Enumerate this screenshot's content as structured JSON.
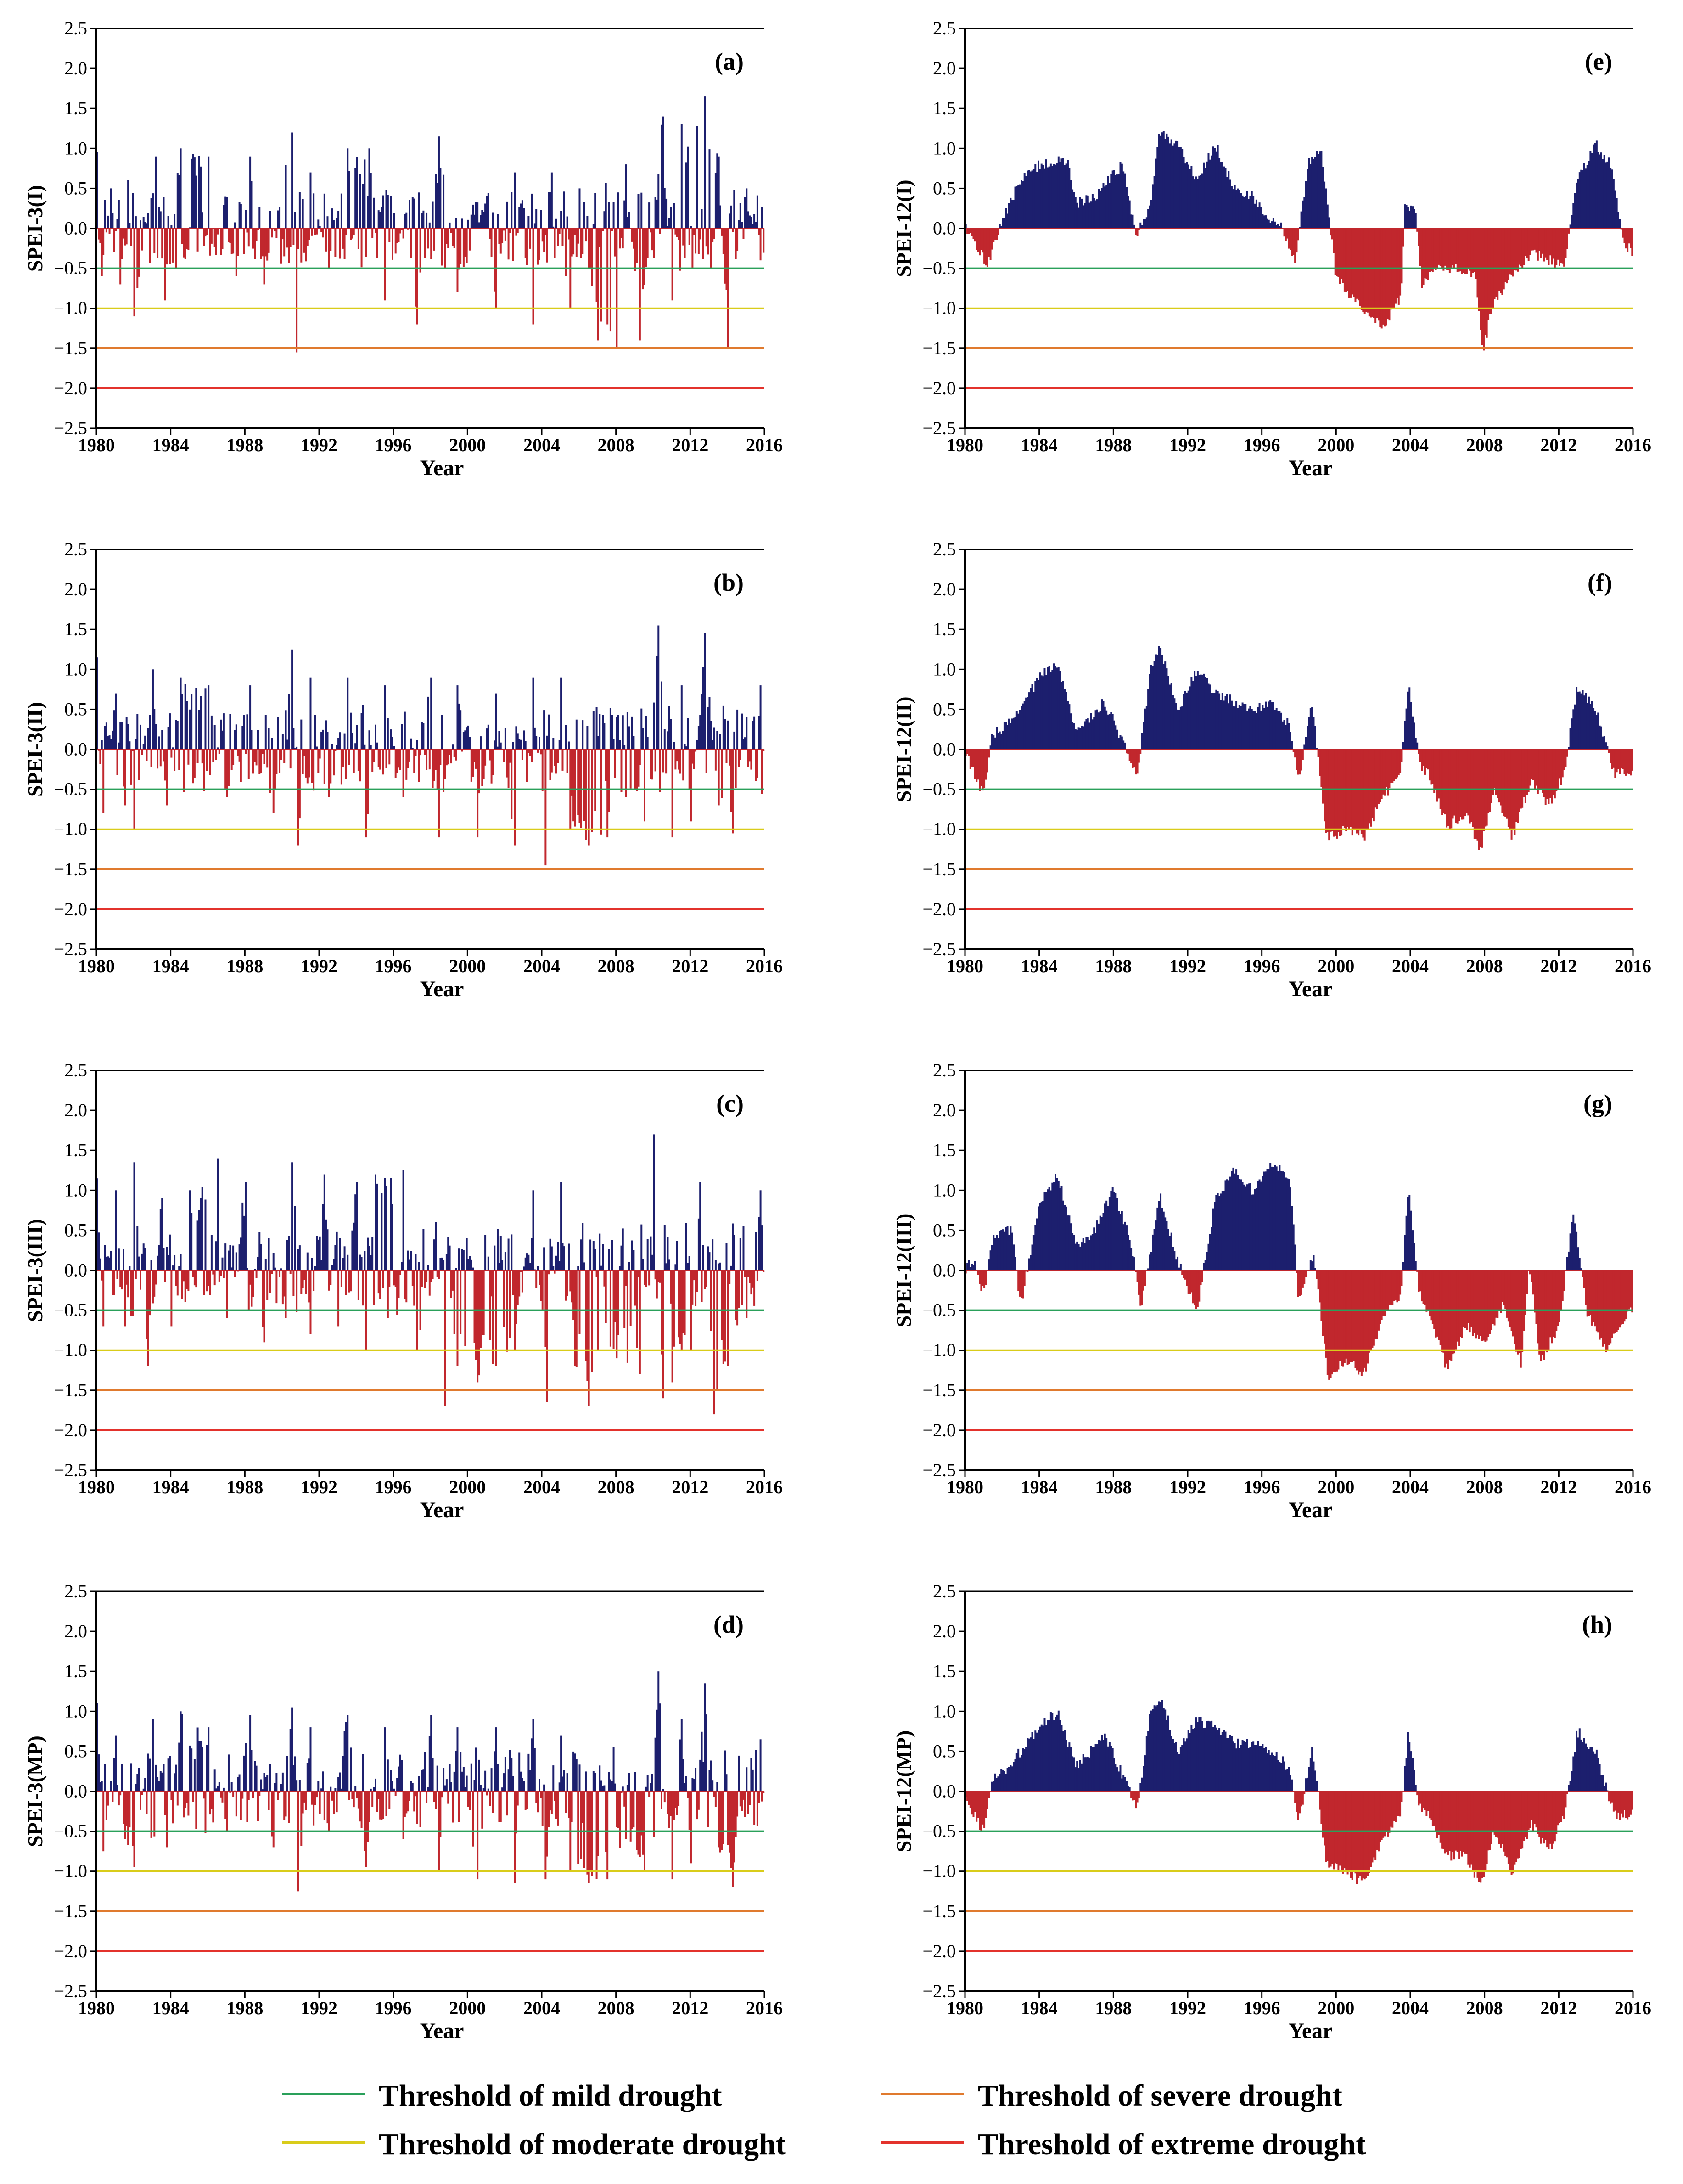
{
  "colors": {
    "wet": "#1c1f6e",
    "dry": "#c1272d",
    "mild": "#2aa05a",
    "moderate": "#d9cc1a",
    "severe": "#e07a2e",
    "extreme": "#e3322c",
    "axis": "#000000"
  },
  "shared": {
    "xlabel": "Year",
    "xlim": [
      1980,
      2016
    ],
    "ylim": [
      -2.5,
      2.5
    ],
    "xticks": [
      1980,
      1984,
      1988,
      1992,
      1996,
      2000,
      2004,
      2008,
      2012,
      2016
    ],
    "xtick_labels": [
      "1980",
      "1984",
      "1988",
      "1992",
      "1996",
      "2000",
      "2004",
      "2008",
      "2012",
      "2016"
    ],
    "yticks": [
      2.5,
      2.0,
      1.5,
      1.0,
      0.5,
      0.0,
      -0.5,
      -1.0,
      -1.5,
      -2.0,
      -2.5
    ],
    "ytick_labels": [
      "2.5",
      "2.0",
      "1.5",
      "1.0",
      "0.5",
      "0.0",
      "−0.5",
      "−1.0",
      "−1.5",
      "−2.0",
      "−2.5"
    ],
    "thresholds": [
      {
        "name": "mild",
        "value": -0.5
      },
      {
        "name": "moderate",
        "value": -1.0
      },
      {
        "name": "severe",
        "value": -1.5
      },
      {
        "name": "extreme",
        "value": -2.0
      }
    ]
  },
  "legend": {
    "placement": "bottom",
    "items": [
      {
        "key": "mild",
        "label": "Threshold of mild drought"
      },
      {
        "key": "severe",
        "label": "Threshold of severe drought"
      },
      {
        "key": "moderate",
        "label": "Threshold of moderate drought"
      },
      {
        "key": "extreme",
        "label": "Threshold of extreme drought"
      }
    ]
  },
  "chart_data": [
    {
      "type": "area",
      "panel_label": "(a)",
      "ylabel": "SPEI-3(I)",
      "xlabel": "Year",
      "xlim": [
        1980,
        2016
      ],
      "ylim": [
        -2.5,
        2.5
      ],
      "scale": "SPEI-3",
      "series": [
        {
          "name": "SPEI-3(I)",
          "x": [
            1980.0,
            1980.3,
            1980.8,
            1981.3,
            1981.7,
            1982.0,
            1983.2,
            1983.7,
            1984.5,
            1986.0,
            1987.5,
            1988.3,
            1989.0,
            1990.5,
            1990.8,
            1991.5,
            1992.5,
            1993.5,
            1994.7,
            1995.5,
            1996.7,
            1997.3,
            1998.5,
            1999.5,
            2001.0,
            2001.5,
            2002.5,
            2003.5,
            2004.5,
            2005.5,
            2006.0,
            2007.0,
            2007.5,
            2008.0,
            2008.5,
            2009.3,
            2010.5,
            2011.0,
            2011.5,
            2012.8,
            2013.5,
            2014.0,
            2015.0,
            2015.8
          ],
          "values": [
            0.95,
            -0.6,
            0.5,
            -0.7,
            0.6,
            -1.1,
            0.9,
            -0.9,
            1.0,
            0.9,
            -0.6,
            0.9,
            -0.7,
            1.2,
            -1.55,
            0.7,
            -0.5,
            1.0,
            1.0,
            -0.9,
            0.2,
            -1.2,
            1.15,
            -0.8,
            0.4,
            -1.0,
            0.7,
            -1.2,
            0.7,
            -1.0,
            0.5,
            -1.4,
            -1.2,
            -1.5,
            0.8,
            -1.4,
            1.4,
            -0.9,
            1.3,
            1.65,
            0.9,
            -1.5,
            0.5,
            -0.4
          ]
        }
      ]
    },
    {
      "type": "area",
      "panel_label": "(b)",
      "ylabel": "SPEI-3(II)",
      "xlabel": "Year",
      "xlim": [
        1980,
        2016
      ],
      "ylim": [
        -2.5,
        2.5
      ],
      "scale": "SPEI-3",
      "series": [
        {
          "name": "SPEI-3(II)",
          "x": [
            1980.0,
            1980.4,
            1981.0,
            1981.5,
            1982.0,
            1983.0,
            1983.8,
            1984.5,
            1986.0,
            1987.0,
            1988.3,
            1989.5,
            1990.5,
            1990.9,
            1991.5,
            1992.5,
            1993.5,
            1994.5,
            1995.5,
            1996.5,
            1998.0,
            1998.5,
            1999.5,
            2000.5,
            2001.5,
            2002.5,
            2003.5,
            2004.2,
            2005.0,
            2005.5,
            2006.5,
            2007.5,
            2008.5,
            2009.5,
            2010.3,
            2011.0,
            2011.5,
            2012.0,
            2012.8,
            2013.5,
            2014.3,
            2015.0,
            2015.8
          ],
          "values": [
            1.15,
            -0.8,
            0.7,
            -0.7,
            -1.0,
            1.0,
            -0.7,
            0.9,
            0.8,
            -0.6,
            0.8,
            -0.8,
            1.25,
            -1.2,
            0.9,
            -0.6,
            0.9,
            -1.1,
            0.8,
            -0.6,
            0.9,
            -1.1,
            0.8,
            -1.1,
            0.7,
            -1.2,
            0.9,
            -1.45,
            0.9,
            -1.0,
            -1.2,
            -1.1,
            -0.6,
            -0.9,
            1.55,
            -1.1,
            0.8,
            -0.9,
            1.45,
            -0.7,
            -1.05,
            0.4,
            0.8
          ]
        }
      ]
    },
    {
      "type": "area",
      "panel_label": "(c)",
      "ylabel": "SPEI-3(III)",
      "xlabel": "Year",
      "xlim": [
        1980,
        2016
      ],
      "ylim": [
        -2.5,
        2.5
      ],
      "scale": "SPEI-3",
      "series": [
        {
          "name": "SPEI-3(III)",
          "x": [
            1980.0,
            1980.4,
            1981.0,
            1981.5,
            1982.0,
            1982.8,
            1983.5,
            1984.0,
            1985.0,
            1986.5,
            1987.0,
            1988.0,
            1989.0,
            1990.5,
            1991.5,
            1992.3,
            1993.0,
            1994.0,
            1994.5,
            1995.0,
            1996.5,
            1997.3,
            1998.3,
            1998.8,
            1999.5,
            2000.5,
            2001.5,
            2002.5,
            2003.5,
            2004.3,
            2005.0,
            2005.8,
            2006.5,
            2007.0,
            2008.0,
            2009.3,
            2010.0,
            2010.5,
            2011.0,
            2012.0,
            2012.5,
            2013.3,
            2014.0,
            2015.0,
            2015.8
          ],
          "values": [
            1.15,
            -0.7,
            1.0,
            -0.7,
            1.35,
            -1.2,
            0.9,
            -0.7,
            1.0,
            1.4,
            -0.6,
            1.1,
            -0.9,
            1.35,
            -0.8,
            1.2,
            -0.7,
            1.1,
            -1.0,
            1.2,
            1.25,
            -1.0,
            0.6,
            -1.7,
            -1.2,
            -1.4,
            -1.2,
            -1.0,
            1.0,
            -1.65,
            1.1,
            -1.2,
            -1.7,
            -1.0,
            -1.1,
            -1.3,
            1.7,
            -1.6,
            -1.4,
            -1.0,
            1.1,
            -1.8,
            -1.2,
            -0.6,
            1.0
          ]
        }
      ]
    },
    {
      "type": "area",
      "panel_label": "(d)",
      "ylabel": "SPEI-3(MP)",
      "xlabel": "Year",
      "xlim": [
        1980,
        2016
      ],
      "ylim": [
        -2.5,
        2.5
      ],
      "scale": "SPEI-3",
      "series": [
        {
          "name": "SPEI-3(MP)",
          "x": [
            1980.0,
            1980.4,
            1981.0,
            1981.5,
            1982.0,
            1983.0,
            1983.8,
            1984.5,
            1986.0,
            1987.0,
            1988.3,
            1989.5,
            1990.5,
            1990.9,
            1991.5,
            1992.5,
            1993.5,
            1994.5,
            1995.5,
            1996.5,
            1998.0,
            1998.5,
            1999.5,
            2000.5,
            2001.5,
            2002.5,
            2003.5,
            2004.2,
            2005.0,
            2005.5,
            2006.5,
            2007.5,
            2008.5,
            2009.5,
            2010.3,
            2011.0,
            2011.5,
            2012.0,
            2012.8,
            2013.5,
            2014.3,
            2015.0,
            2015.8
          ],
          "values": [
            1.1,
            -0.75,
            0.7,
            -0.6,
            -0.95,
            0.9,
            -0.7,
            1.0,
            0.8,
            -0.5,
            0.95,
            -0.7,
            1.05,
            -1.25,
            0.8,
            -0.5,
            0.95,
            -0.95,
            0.8,
            -0.6,
            0.95,
            -1.0,
            0.8,
            -1.1,
            0.8,
            -1.15,
            0.9,
            -1.1,
            0.7,
            -1.0,
            -1.15,
            -1.1,
            -0.6,
            -1.0,
            1.5,
            -1.1,
            0.9,
            -0.9,
            1.35,
            -0.7,
            -1.2,
            0.3,
            0.65
          ]
        }
      ]
    },
    {
      "type": "area",
      "panel_label": "(e)",
      "ylabel": "SPEI-12(I)",
      "xlabel": "Year",
      "xlim": [
        1980,
        2016
      ],
      "ylim": [
        -2.5,
        2.5
      ],
      "scale": "SPEI-12",
      "series": [
        {
          "name": "SPEI-12(I)",
          "x": [
            1980.0,
            1980.8,
            1981.2,
            1982.0,
            1983.0,
            1984.0,
            1985.5,
            1986.0,
            1987.0,
            1988.5,
            1989.2,
            1990.0,
            1990.5,
            1991.5,
            1992.5,
            1993.5,
            1994.5,
            1995.5,
            1996.3,
            1997.0,
            1997.8,
            1998.5,
            1999.2,
            2000.0,
            2001.0,
            2002.5,
            2003.5,
            2003.7,
            2004.3,
            2004.6,
            2005.5,
            2006.5,
            2007.5,
            2007.9,
            2008.5,
            2009.5,
            2010.5,
            2011.5,
            2012.3,
            2013.0,
            2014.0,
            2014.8,
            2015.5,
            2016.0
          ],
          "values": [
            0.0,
            -0.3,
            -0.45,
            0.1,
            0.6,
            0.8,
            0.85,
            0.3,
            0.4,
            0.8,
            -0.1,
            0.3,
            1.2,
            1.05,
            0.6,
            1.05,
            0.5,
            0.4,
            0.1,
            0.05,
            -0.4,
            0.8,
            0.95,
            -0.6,
            -0.9,
            -1.25,
            -0.85,
            0.25,
            0.2,
            -0.7,
            -0.5,
            -0.5,
            -0.55,
            -1.55,
            -0.9,
            -0.6,
            -0.3,
            -0.4,
            -0.5,
            0.6,
            1.05,
            0.8,
            -0.2,
            -0.3
          ]
        }
      ]
    },
    {
      "type": "area",
      "panel_label": "(f)",
      "ylabel": "SPEI-12(II)",
      "xlabel": "Year",
      "xlim": [
        1980,
        2016
      ],
      "ylim": [
        -2.5,
        2.5
      ],
      "scale": "SPEI-12",
      "series": [
        {
          "name": "SPEI-12(II)",
          "x": [
            1980.0,
            1980.5,
            1981.0,
            1981.5,
            1982.3,
            1983.0,
            1984.0,
            1985.0,
            1986.0,
            1987.5,
            1988.5,
            1989.3,
            1990.0,
            1990.5,
            1991.5,
            1992.5,
            1993.5,
            1994.5,
            1995.5,
            1996.5,
            1997.5,
            1998.0,
            1998.7,
            1999.5,
            2000.5,
            2001.5,
            2002.5,
            2003.5,
            2003.9,
            2004.5,
            2005.0,
            2006.0,
            2007.0,
            2007.8,
            2008.5,
            2009.5,
            2010.5,
            2011.5,
            2012.3,
            2013.0,
            2014.0,
            2015.0,
            2016.0
          ],
          "values": [
            0.0,
            -0.3,
            -0.6,
            0.2,
            0.3,
            0.5,
            0.9,
            1.05,
            0.2,
            0.6,
            0.1,
            -0.3,
            1.0,
            1.3,
            0.5,
            1.0,
            0.7,
            0.6,
            0.5,
            0.6,
            0.3,
            -0.4,
            0.6,
            -1.1,
            -1.0,
            -1.1,
            -0.6,
            -0.3,
            0.85,
            -0.2,
            -0.3,
            -0.95,
            -0.8,
            -1.25,
            -0.5,
            -1.1,
            -0.4,
            -0.7,
            -0.3,
            0.8,
            0.5,
            -0.3,
            -0.3
          ]
        }
      ]
    },
    {
      "type": "area",
      "panel_label": "(g)",
      "ylabel": "SPEI-12(III)",
      "xlabel": "Year",
      "xlim": [
        1980,
        2016
      ],
      "ylim": [
        -2.5,
        2.5
      ],
      "scale": "SPEI-12",
      "series": [
        {
          "name": "SPEI-12(III)",
          "x": [
            1980.0,
            1980.5,
            1981.0,
            1981.5,
            1982.5,
            1983.0,
            1984.0,
            1985.0,
            1986.0,
            1987.0,
            1988.0,
            1989.0,
            1989.5,
            1990.5,
            1991.5,
            1992.5,
            1993.5,
            1994.5,
            1995.5,
            1996.5,
            1997.5,
            1998.0,
            1998.8,
            1999.6,
            2000.5,
            2001.5,
            2002.5,
            2003.5,
            2003.9,
            2004.5,
            2005.0,
            2006.0,
            2007.0,
            2008.0,
            2009.0,
            2010.0,
            2010.4,
            2011.0,
            2012.0,
            2012.8,
            2013.5,
            2014.5,
            2015.5,
            2016.0
          ],
          "values": [
            0.0,
            0.15,
            -0.3,
            0.4,
            0.5,
            -0.45,
            0.8,
            1.2,
            0.3,
            0.5,
            1.0,
            0.3,
            -0.5,
            0.95,
            0.1,
            -0.5,
            0.9,
            1.25,
            1.0,
            1.3,
            1.2,
            -0.4,
            0.2,
            -1.4,
            -1.1,
            -1.3,
            -0.6,
            -0.3,
            1.0,
            -0.3,
            -0.5,
            -1.25,
            -0.7,
            -0.9,
            -0.4,
            -1.2,
            0.1,
            -1.15,
            -0.7,
            0.7,
            -0.5,
            -1.0,
            -0.6,
            -0.5
          ]
        }
      ]
    },
    {
      "type": "area",
      "panel_label": "(h)",
      "ylabel": "SPEI-12(MP)",
      "xlabel": "Year",
      "xlim": [
        1980,
        2016
      ],
      "ylim": [
        -2.5,
        2.5
      ],
      "scale": "SPEI-12",
      "series": [
        {
          "name": "SPEI-12(MP)",
          "x": [
            1980.0,
            1980.5,
            1981.0,
            1981.5,
            1982.3,
            1983.0,
            1984.0,
            1985.0,
            1986.0,
            1987.5,
            1988.5,
            1989.3,
            1990.0,
            1990.5,
            1991.5,
            1992.5,
            1993.5,
            1994.5,
            1995.5,
            1996.5,
            1997.5,
            1998.0,
            1998.7,
            1999.5,
            2000.5,
            2001.5,
            2002.5,
            2003.5,
            2003.9,
            2004.5,
            2005.0,
            2006.0,
            2007.0,
            2007.8,
            2008.5,
            2009.5,
            2010.5,
            2011.5,
            2012.3,
            2013.0,
            2014.0,
            2015.0,
            2016.0
          ],
          "values": [
            0.0,
            -0.3,
            -0.5,
            0.15,
            0.3,
            0.5,
            0.8,
            1.0,
            0.3,
            0.7,
            0.2,
            -0.2,
            1.0,
            1.2,
            0.5,
            0.9,
            0.8,
            0.6,
            0.6,
            0.5,
            0.3,
            -0.4,
            0.55,
            -0.9,
            -1.0,
            -1.15,
            -0.6,
            -0.3,
            0.75,
            -0.2,
            -0.3,
            -0.8,
            -0.8,
            -1.2,
            -0.5,
            -1.0,
            -0.4,
            -0.75,
            -0.3,
            0.75,
            0.5,
            -0.3,
            -0.3
          ]
        }
      ]
    }
  ]
}
